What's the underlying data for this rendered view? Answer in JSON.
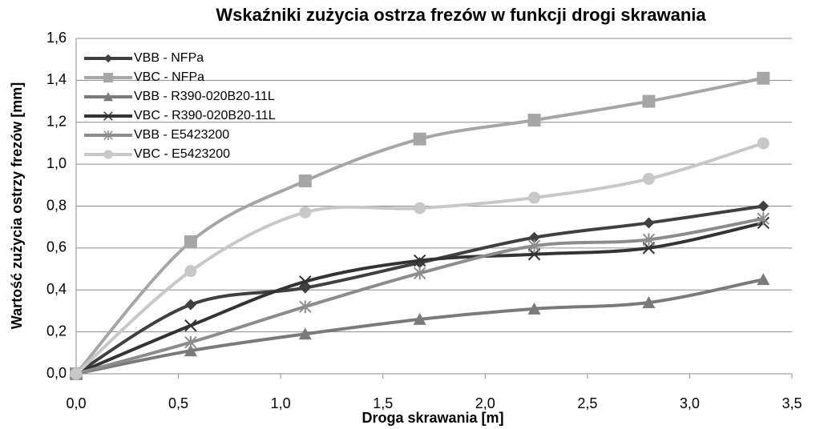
{
  "chart_data": {
    "type": "line",
    "smooth": true,
    "title": "Wskaźniki zużycia ostrza frezów w funkcji drogi skrawania",
    "xlabel": "Droga skrawania [m]",
    "ylabel": "Wartość zużycia ostrzy frezów [mm]",
    "x": [
      0,
      0.56,
      1.12,
      1.68,
      2.24,
      2.8,
      3.36
    ],
    "xlim": [
      0,
      3.5
    ],
    "xticks": [
      {
        "value": 0,
        "label": "0,0"
      },
      {
        "value": 0.5,
        "label": "0,5"
      },
      {
        "value": 1,
        "label": "1,0"
      },
      {
        "value": 1.5,
        "label": "1,5"
      },
      {
        "value": 2,
        "label": "2,0"
      },
      {
        "value": 2.5,
        "label": "2,5"
      },
      {
        "value": 3,
        "label": "3,0"
      },
      {
        "value": 3.5,
        "label": "3,5"
      }
    ],
    "ylim": [
      0,
      1.6
    ],
    "yticks": [
      {
        "value": 0,
        "label": "0,0"
      },
      {
        "value": 0.2,
        "label": "0,2"
      },
      {
        "value": 0.4,
        "label": "0,4"
      },
      {
        "value": 0.6,
        "label": "0,6"
      },
      {
        "value": 0.8,
        "label": "0,8"
      },
      {
        "value": 1,
        "label": "1,0"
      },
      {
        "value": 1.2,
        "label": "1,2"
      },
      {
        "value": 1.4,
        "label": "1,4"
      },
      {
        "value": 1.6,
        "label": "1,6"
      }
    ],
    "grid": true,
    "legend": "top-left",
    "series": [
      {
        "name": "VBB - NFPa",
        "color": "#404040",
        "marker": "diamond",
        "values": [
          0,
          0.33,
          0.41,
          0.53,
          0.65,
          0.72,
          0.8
        ]
      },
      {
        "name": "VBC - NFPa",
        "color": "#a6a6a6",
        "marker": "square",
        "values": [
          0,
          0.63,
          0.92,
          1.12,
          1.21,
          1.3,
          1.41
        ]
      },
      {
        "name": "VBB - R390-020B20-11L",
        "color": "#7a7a7a",
        "marker": "triangle",
        "values": [
          0,
          0.11,
          0.19,
          0.26,
          0.31,
          0.34,
          0.45
        ]
      },
      {
        "name": "VBC - R390-020B20-11L",
        "color": "#333333",
        "marker": "x",
        "values": [
          0,
          0.23,
          0.44,
          0.54,
          0.57,
          0.6,
          0.72
        ]
      },
      {
        "name": "VBB - E5423200",
        "color": "#8c8c8c",
        "marker": "star",
        "values": [
          0,
          0.15,
          0.32,
          0.48,
          0.61,
          0.64,
          0.74
        ]
      },
      {
        "name": "VBC - E5423200",
        "color": "#c8c8c8",
        "marker": "circle",
        "values": [
          0,
          0.49,
          0.77,
          0.79,
          0.84,
          0.93,
          1.1
        ]
      }
    ]
  }
}
